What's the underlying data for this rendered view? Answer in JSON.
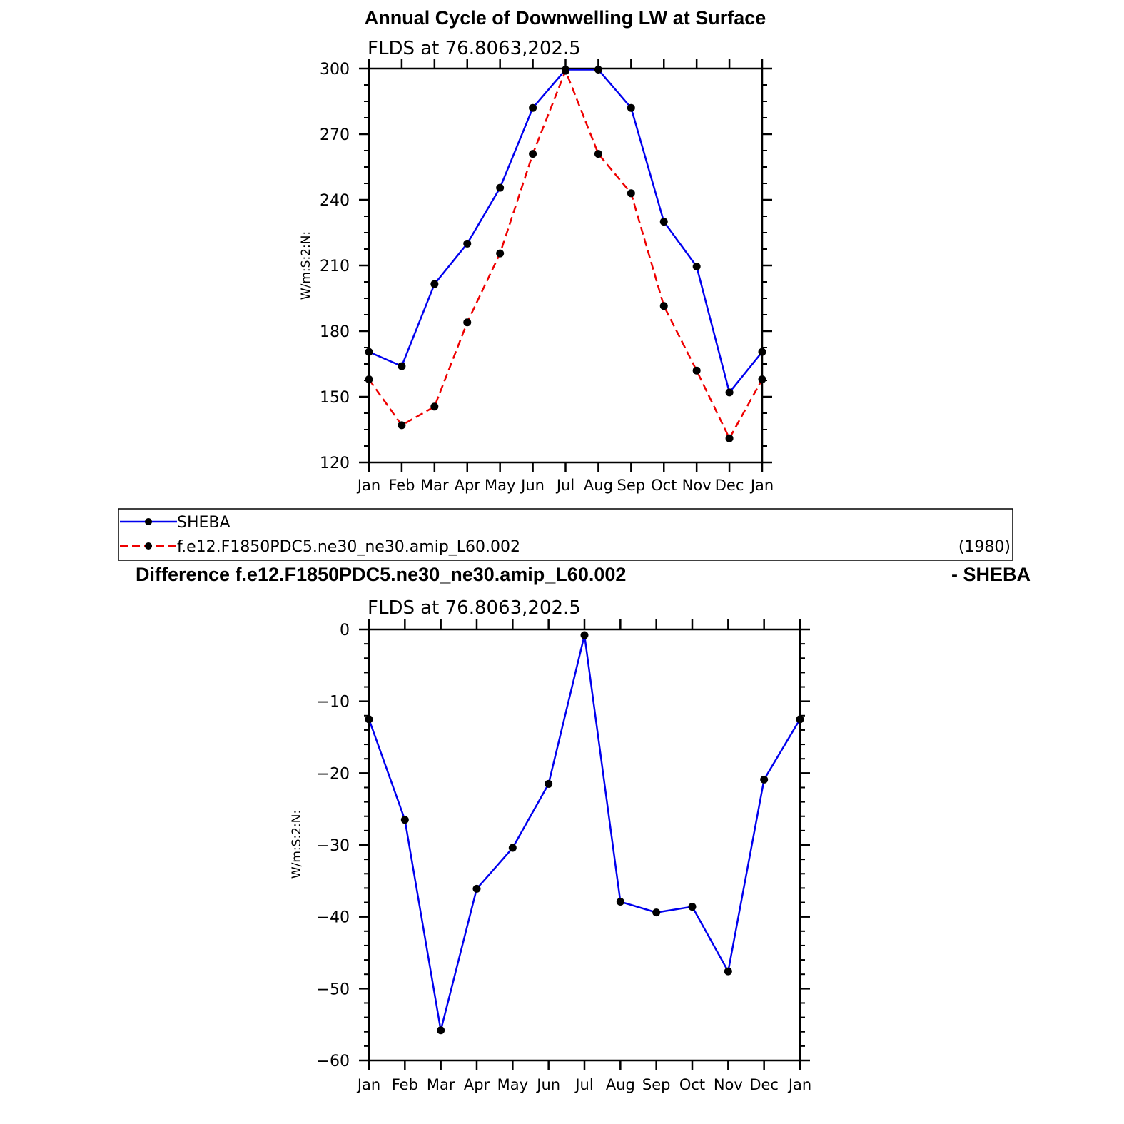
{
  "chart_data": [
    {
      "type": "line",
      "title": "Annual Cycle of Downwelling LW at Surface",
      "subtitle": "FLDS at 76.8063,202.5",
      "ylabel": "W/m:S:2:N:",
      "categories": [
        "Jan",
        "Feb",
        "Mar",
        "Apr",
        "May",
        "Jun",
        "Jul",
        "Aug",
        "Sep",
        "Oct",
        "Nov",
        "Dec",
        "Jan"
      ],
      "yticks": [
        120,
        150,
        180,
        210,
        240,
        270,
        300
      ],
      "ylim": [
        120,
        300
      ],
      "grid": false,
      "series": [
        {
          "name": "SHEBA",
          "color": "#0000ee",
          "dash": "solid",
          "values": [
            170.5,
            164,
            201.5,
            220,
            245.5,
            282,
            299.5,
            299.5,
            282,
            230,
            209.5,
            152,
            170.5
          ]
        },
        {
          "name": "f.e12.F1850PDC5.ne30_ne30.amip_L60.002",
          "color": "#ee0000",
          "dash": "dashed",
          "values": [
            158,
            137,
            145.5,
            184,
            215.5,
            261,
            299,
            261,
            243,
            191.5,
            162,
            131,
            158
          ]
        }
      ]
    },
    {
      "type": "line",
      "title": "Difference f.e12.F1850PDC5.ne30_ne30.amip_L60.002",
      "title_right": "- SHEBA",
      "subtitle": "FLDS at 76.8063,202.5",
      "ylabel": "W/m:S:2:N:",
      "categories": [
        "Jan",
        "Feb",
        "Mar",
        "Apr",
        "May",
        "Jun",
        "Jul",
        "Aug",
        "Sep",
        "Oct",
        "Nov",
        "Dec",
        "Jan"
      ],
      "yticks": [
        -60,
        -50,
        -40,
        -30,
        -20,
        -10,
        0
      ],
      "ytick_labels": [
        "−60",
        "−50",
        "−40",
        "−30",
        "−20",
        "−10",
        "0"
      ],
      "ylim": [
        -60,
        0
      ],
      "grid": false,
      "series": [
        {
          "name": "",
          "color": "#0000ee",
          "dash": "solid",
          "values": [
            -12.5,
            -26.5,
            -55.8,
            -36.1,
            -30.4,
            -21.5,
            -0.8,
            -37.9,
            -39.4,
            -38.6,
            -47.6,
            -20.9,
            -12.5
          ]
        }
      ]
    }
  ],
  "legend": {
    "entries": [
      "SHEBA",
      "f.e12.F1850PDC5.ne30_ne30.amip_L60.002"
    ],
    "note": "(1980)"
  }
}
